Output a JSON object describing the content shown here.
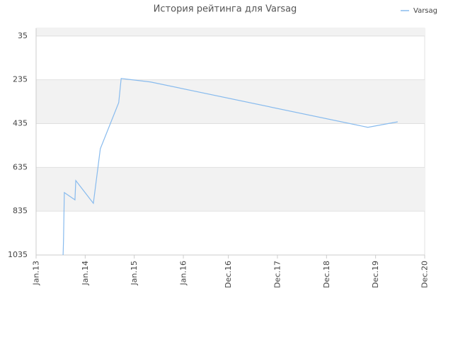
{
  "chart_data": {
    "type": "line",
    "title": "История рейтинга для Varsag",
    "series": [
      {
        "name": "Varsag",
        "color": "#88bbee",
        "x": [
          6.6,
          6.7,
          6.9,
          9.5,
          9.7,
          14.0,
          15.7,
          20.2,
          20.8,
          28.0,
          81.1,
          88.4
        ],
        "values": [
          1035,
          970,
          750,
          783,
          695,
          799,
          550,
          339,
          229,
          245,
          452,
          427
        ]
      }
    ],
    "xlim": [
      0,
      95
    ],
    "xticks": [
      {
        "value": 0,
        "label": "Jan.13"
      },
      {
        "value": 12,
        "label": "Jan.14"
      },
      {
        "value": 24,
        "label": "Jan.15"
      },
      {
        "value": 36,
        "label": "Jan.16"
      },
      {
        "value": 47,
        "label": "Dec.16"
      },
      {
        "value": 59,
        "label": "Dec.17"
      },
      {
        "value": 71,
        "label": "Dec.18"
      },
      {
        "value": 83,
        "label": "Dec.19"
      },
      {
        "value": 95,
        "label": "Dec.20"
      }
    ],
    "ylim": [
      1035,
      0
    ],
    "yticks": [
      35,
      235,
      435,
      635,
      835,
      1035
    ],
    "grid": true,
    "legend": "top-right"
  }
}
